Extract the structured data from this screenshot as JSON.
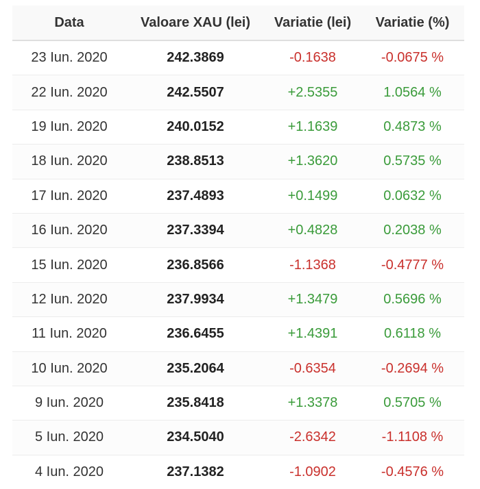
{
  "table": {
    "headers": [
      "Data",
      "Valoare XAU (lei)",
      "Variatie (lei)",
      "Variatie (%)"
    ],
    "colors": {
      "up": "#3a9b3a",
      "down": "#c9302c"
    },
    "rows": [
      {
        "date": "23 Iun. 2020",
        "value": "242.3869",
        "change_lei": "-0.1638",
        "change_pct": "-0.0675 %",
        "trend": "down"
      },
      {
        "date": "22 Iun. 2020",
        "value": "242.5507",
        "change_lei": "+2.5355",
        "change_pct": "1.0564 %",
        "trend": "up"
      },
      {
        "date": "19 Iun. 2020",
        "value": "240.0152",
        "change_lei": "+1.1639",
        "change_pct": "0.4873 %",
        "trend": "up"
      },
      {
        "date": "18 Iun. 2020",
        "value": "238.8513",
        "change_lei": "+1.3620",
        "change_pct": "0.5735 %",
        "trend": "up"
      },
      {
        "date": "17 Iun. 2020",
        "value": "237.4893",
        "change_lei": "+0.1499",
        "change_pct": "0.0632 %",
        "trend": "up"
      },
      {
        "date": "16 Iun. 2020",
        "value": "237.3394",
        "change_lei": "+0.4828",
        "change_pct": "0.2038 %",
        "trend": "up"
      },
      {
        "date": "15 Iun. 2020",
        "value": "236.8566",
        "change_lei": "-1.1368",
        "change_pct": "-0.4777 %",
        "trend": "down"
      },
      {
        "date": "12 Iun. 2020",
        "value": "237.9934",
        "change_lei": "+1.3479",
        "change_pct": "0.5696 %",
        "trend": "up"
      },
      {
        "date": "11 Iun. 2020",
        "value": "236.6455",
        "change_lei": "+1.4391",
        "change_pct": "0.6118 %",
        "trend": "up"
      },
      {
        "date": "10 Iun. 2020",
        "value": "235.2064",
        "change_lei": "-0.6354",
        "change_pct": "-0.2694 %",
        "trend": "down"
      },
      {
        "date": "9 Iun. 2020",
        "value": "235.8418",
        "change_lei": "+1.3378",
        "change_pct": "0.5705 %",
        "trend": "up"
      },
      {
        "date": "5 Iun. 2020",
        "value": "234.5040",
        "change_lei": "-2.6342",
        "change_pct": "-1.1108 %",
        "trend": "down"
      },
      {
        "date": "4 Iun. 2020",
        "value": "237.1382",
        "change_lei": "-1.0902",
        "change_pct": "-0.4576 %",
        "trend": "down"
      }
    ]
  }
}
